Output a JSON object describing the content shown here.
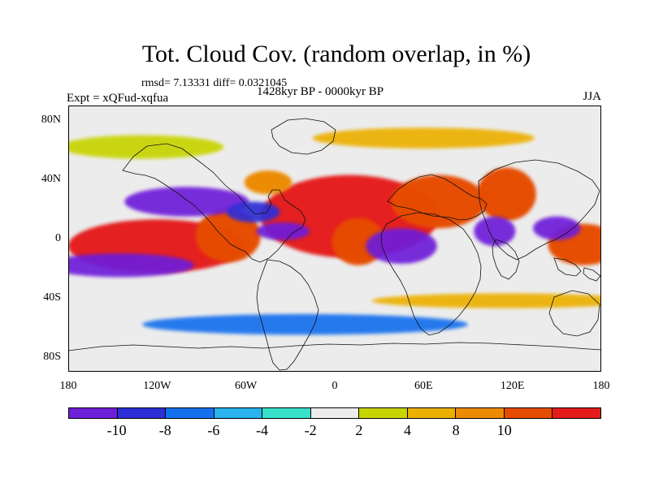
{
  "title": "Tot. Cloud Cov. (random overlap, in %)",
  "stats": "rmsd= 7.13331 diff= 0.0321045",
  "left_label": "Expt = xQFud-xqfua",
  "center_label": "1428kyr BP - 0000kyr BP",
  "right_label": "JJA",
  "axes": {
    "lat_ticks": [
      "80N",
      "40N",
      "0",
      "40S",
      "80S"
    ],
    "lon_ticks": [
      "180",
      "120W",
      "60W",
      "0",
      "60E",
      "120E",
      "180"
    ]
  },
  "colorbar": {
    "colors": [
      "#6e1fd9",
      "#2d2fd6",
      "#1570ee",
      "#2ab3ee",
      "#36e1c8",
      "#ececec",
      "#c8d400",
      "#ecb000",
      "#ec8a00",
      "#e64c00",
      "#e41b1b"
    ],
    "labels": [
      "-10",
      "-8",
      "-6",
      "-4",
      "-2",
      "2",
      "4",
      "8",
      "10"
    ]
  },
  "chart_data": {
    "type": "heatmap",
    "title": "Tot. Cloud Cov. (random overlap, in %)",
    "subtitle": "rmsd= 7.13331 diff= 0.0321045",
    "experiment": "Expt = xQFud-xqfua",
    "period": "1428kyr BP - 0000kyr BP",
    "season": "JJA",
    "xlabel": "",
    "ylabel": "",
    "x_ticks": [
      "180",
      "120W",
      "60W",
      "0",
      "60E",
      "120E",
      "180"
    ],
    "y_ticks": [
      "80N",
      "40N",
      "0",
      "40S",
      "80S"
    ],
    "xlim": [
      -180,
      180
    ],
    "ylim": [
      -90,
      90
    ],
    "levels": [
      -10,
      -8,
      -6,
      -4,
      -2,
      2,
      4,
      8,
      10
    ],
    "colors": [
      "#6e1fd9",
      "#2d2fd6",
      "#1570ee",
      "#2ab3ee",
      "#36e1c8",
      "#ececec",
      "#c8d400",
      "#ecb000",
      "#ec8a00",
      "#e64c00",
      "#e41b1b"
    ],
    "regions": [
      {
        "name": "central-pacific-red",
        "lon": -120,
        "lat": -5,
        "w": 60,
        "h": 18,
        "value": 12
      },
      {
        "name": "south-america-red",
        "lon": -72,
        "lat": 2,
        "w": 22,
        "h": 18,
        "value": 11
      },
      {
        "name": "north-africa-red",
        "lon": 10,
        "lat": 15,
        "w": 60,
        "h": 28,
        "value": 12
      },
      {
        "name": "central-africa-red",
        "lon": 16,
        "lat": -2,
        "w": 18,
        "h": 16,
        "value": 10
      },
      {
        "name": "arabian-india-red",
        "lon": 70,
        "lat": 25,
        "w": 32,
        "h": 18,
        "value": 10
      },
      {
        "name": "east-asia-red",
        "lon": 116,
        "lat": 30,
        "w": 20,
        "h": 18,
        "value": 10
      },
      {
        "name": "western-pacific-red",
        "lon": 168,
        "lat": -4,
        "w": 24,
        "h": 14,
        "value": 10
      },
      {
        "name": "north-atlantic-red",
        "lon": -45,
        "lat": 38,
        "w": 16,
        "h": 8,
        "value": 9
      },
      {
        "name": "tropical-pacific-purple",
        "lon": -145,
        "lat": -18,
        "w": 50,
        "h": 8,
        "value": -11
      },
      {
        "name": "north-pacific-purple",
        "lon": -100,
        "lat": 25,
        "w": 42,
        "h": 10,
        "value": -10
      },
      {
        "name": "caribbean-purple",
        "lon": -55,
        "lat": 18,
        "w": 18,
        "h": 7,
        "value": -9
      },
      {
        "name": "tropical-atlantic-purple",
        "lon": -35,
        "lat": 5,
        "w": 18,
        "h": 6,
        "value": -10
      },
      {
        "name": "indian-ocean-purple",
        "lon": 45,
        "lat": -5,
        "w": 24,
        "h": 12,
        "value": -11
      },
      {
        "name": "southeast-asia-purple",
        "lon": 108,
        "lat": 5,
        "w": 14,
        "h": 10,
        "value": -10
      },
      {
        "name": "maritime-purple",
        "lon": 150,
        "lat": 7,
        "w": 16,
        "h": 8,
        "value": -10
      },
      {
        "name": "southern-ocean-blue",
        "lon": -20,
        "lat": -58,
        "w": 110,
        "h": 7,
        "value": -6
      },
      {
        "name": "southern-ocean-orange",
        "lon": 115,
        "lat": -42,
        "w": 90,
        "h": 5,
        "value": 5
      },
      {
        "name": "arctic-orange",
        "lon": 60,
        "lat": 68,
        "w": 75,
        "h": 7,
        "value": 5
      },
      {
        "name": "northern-yellow",
        "lon": -130,
        "lat": 62,
        "w": 55,
        "h": 8,
        "value": 3
      }
    ]
  }
}
